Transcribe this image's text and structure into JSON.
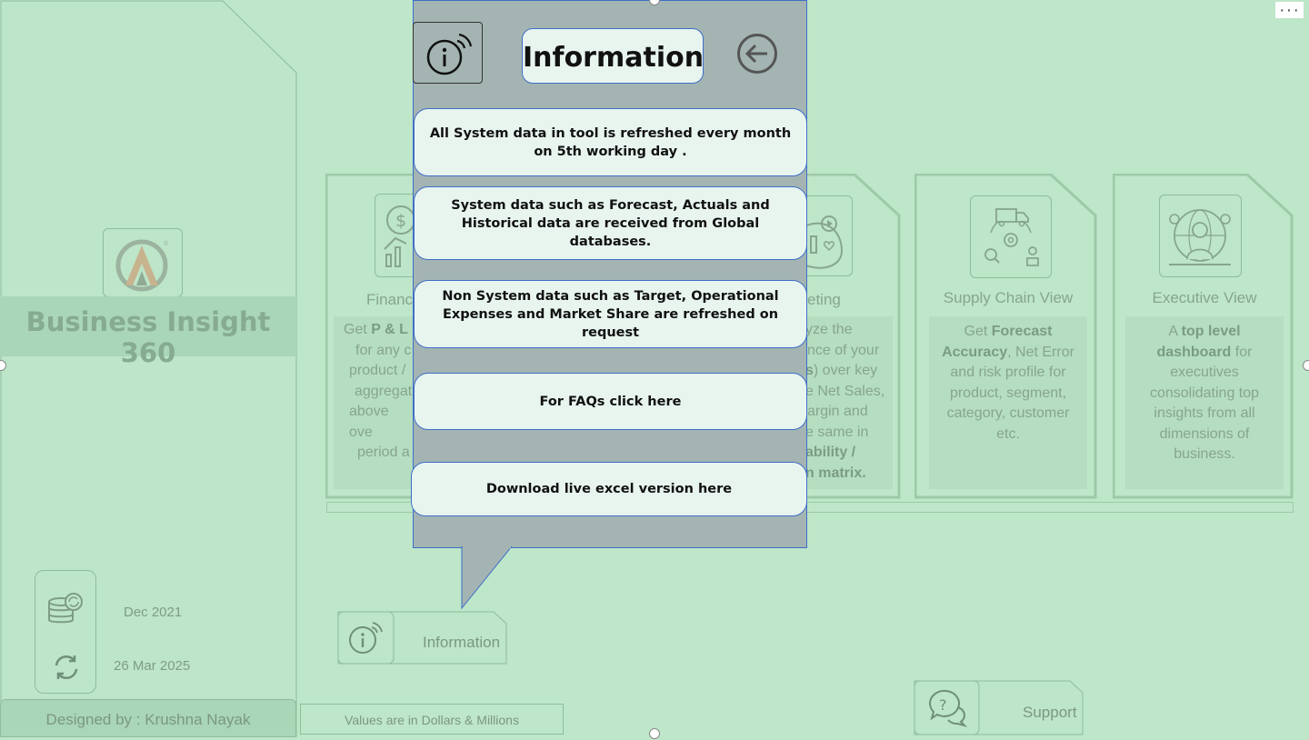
{
  "app": {
    "title": "Business Insight 360",
    "designed_by": "Designed by : Krushna Nayak",
    "data_refresh_month": "Dec 2021",
    "last_refresh_date": "26 Mar 2025",
    "values_note": "Values are in Dollars & Millions"
  },
  "cards": [
    {
      "title": "Finance View",
      "title_visible": "Financ",
      "body_parts": [
        "Get ",
        "P & L",
        " for any c product / aggregat above ove period a"
      ]
    },
    {
      "title_visible": "eting",
      "body_lines": [
        "yze the",
        "nce of your",
        "s) over key",
        "e Net Sales,",
        "argin and",
        "e same in",
        "ability /",
        "n matrix."
      ]
    },
    {
      "title": "Supply Chain View",
      "body_pre": "Get ",
      "body_bold": "Forecast Accuracy",
      "body_post": ", Net Error and risk profile for product, segment, category, customer etc."
    },
    {
      "title": "Executive View",
      "body_pre": "A ",
      "body_bold": "top level dashboard",
      "body_post": " for executives consolidating top insights from all dimensions of business."
    }
  ],
  "finance_card": {
    "line1_pre": "Get ",
    "line1_bold": "P & L",
    "lines": [
      "for any c",
      "product /",
      "aggregat",
      "above ove",
      "period a"
    ]
  },
  "marketing_card": {
    "lines": [
      "yze the",
      "nce of your"
    ],
    "line3_bold": "s",
    "line3_post": ") over key",
    "lines2": [
      "e Net Sales,",
      "argin and",
      "e same in"
    ],
    "bold_lines": [
      "ability /",
      "n matrix."
    ]
  },
  "buttons": {
    "information": "Information",
    "support": "Support"
  },
  "popup": {
    "title": "Information",
    "messages": [
      "All System data in tool is refreshed every month on 5th working day .",
      "System data such as Forecast, Actuals and Historical data are received from Global databases.",
      "Non System data such as Target, Operational Expenses and Market Share are refreshed on request",
      "For FAQs click here",
      "Download live excel version here"
    ]
  },
  "menu": {
    "more_label": "···"
  },
  "colors": {
    "background": "#bee6c9",
    "popup_bg": "#a3b4b2",
    "popup_card": "#e8f5ef",
    "accent_border": "#3f6ec7"
  }
}
